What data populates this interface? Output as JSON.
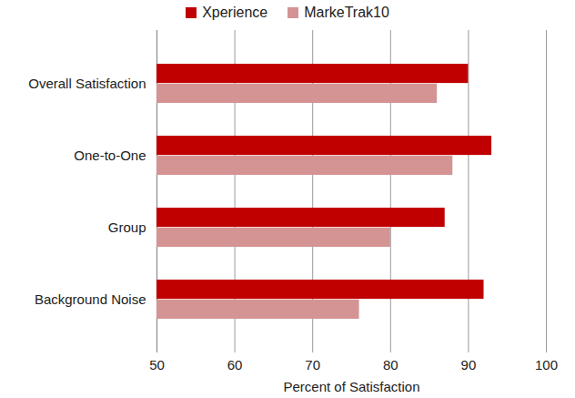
{
  "chart_data": {
    "type": "bar",
    "orientation": "horizontal",
    "categories": [
      "Overall Satisfaction",
      "One-to-One",
      "Group",
      "Background Noise"
    ],
    "series": [
      {
        "name": "Xperience",
        "color": "#c00000",
        "values": [
          90,
          93,
          87,
          92
        ]
      },
      {
        "name": "MarkeTrak10",
        "color": "#d49494",
        "values": [
          86,
          88,
          80,
          76
        ]
      }
    ],
    "x_label": "Percent of Satisfaction",
    "xlim": [
      50,
      100
    ],
    "xticks": [
      50,
      60,
      70,
      80,
      90,
      100
    ],
    "grid": true,
    "legend": "top"
  }
}
